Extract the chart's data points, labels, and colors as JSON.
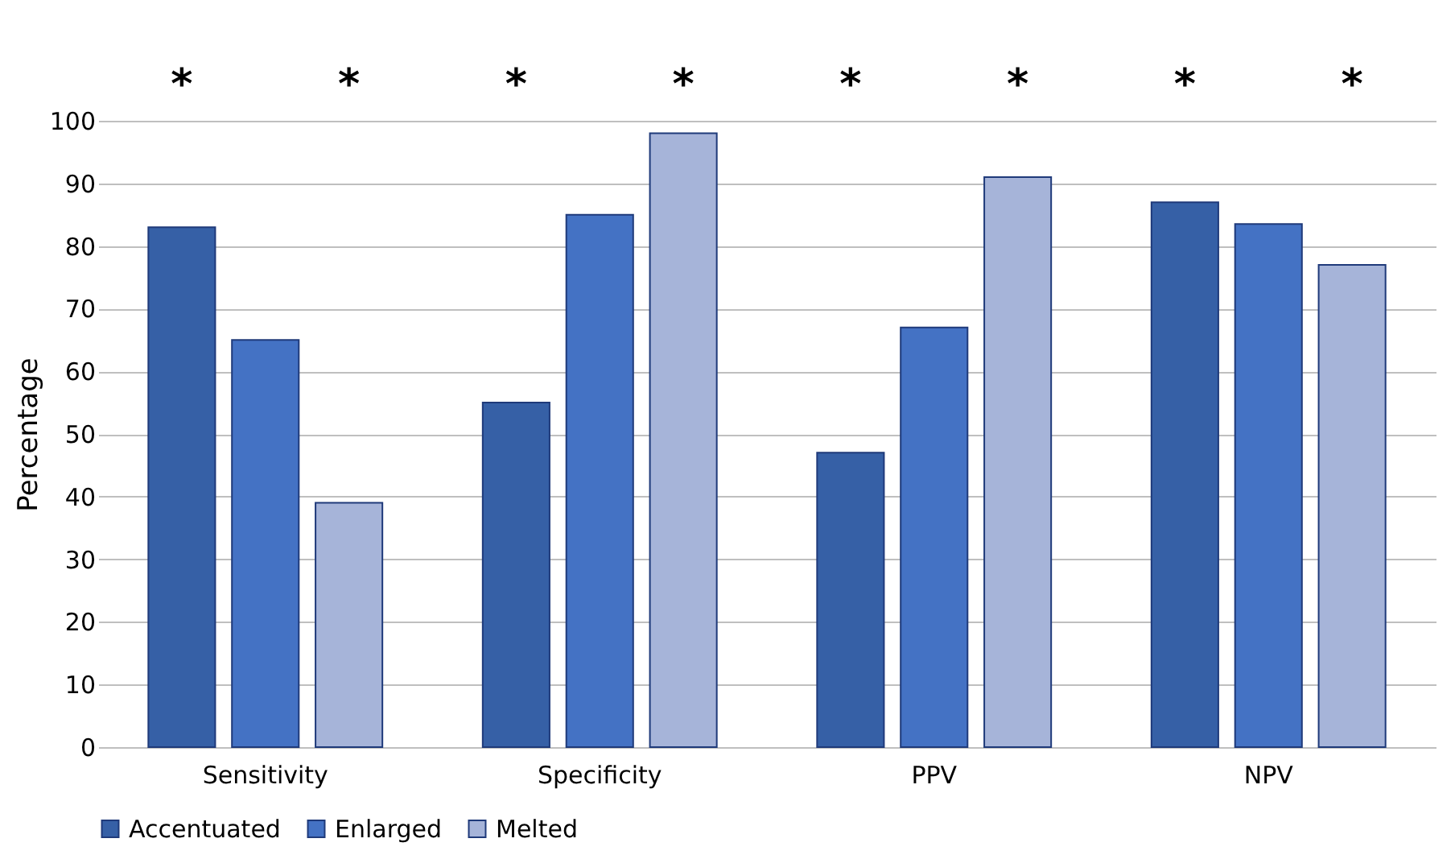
{
  "chart_data": {
    "type": "bar",
    "ylabel": "Percentage",
    "categories": [
      "Sensitivity",
      "Specificity",
      "PPV",
      "NPV"
    ],
    "series": [
      {
        "name": "Accentuated",
        "color": "#3660a6",
        "values": [
          83,
          55,
          47,
          87
        ]
      },
      {
        "name": "Enlarged",
        "color": "#4472c4",
        "values": [
          65,
          85,
          67,
          83.5
        ]
      },
      {
        "name": "Melted",
        "color": "#a6b4d9",
        "values": [
          39,
          98,
          91,
          77
        ]
      }
    ],
    "ylim": [
      0,
      100
    ],
    "yticks": [
      0,
      10,
      20,
      30,
      40,
      50,
      60,
      70,
      80,
      90,
      100
    ],
    "grid": "y",
    "legend": "bottom",
    "annotations": [
      "*",
      "*",
      "*",
      "*",
      "*",
      "*",
      "*",
      "*"
    ]
  }
}
